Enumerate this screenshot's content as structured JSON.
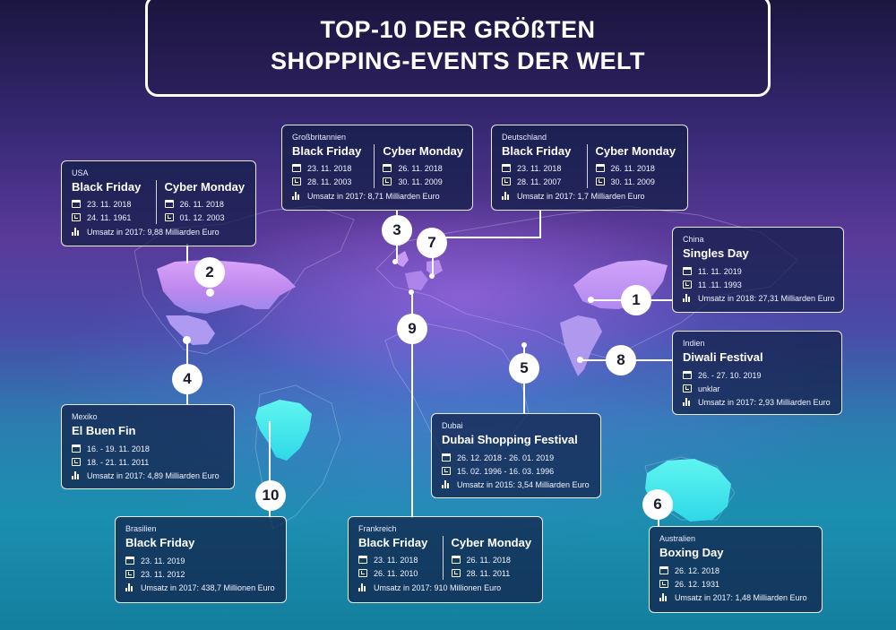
{
  "title": {
    "line1": "TOP-10 DER GRÖßTEN",
    "line2": "SHOPPING-EVENTS DER WELT"
  },
  "colors": {
    "card_bg": "#12204a",
    "badge": "#ffffff",
    "map_north": "#d8a8ff",
    "map_south": "#4ff0f0"
  },
  "icons": {
    "date": "calendar-icon",
    "founded": "clock-icon",
    "revenue": "bar-chart-icon"
  },
  "events": [
    {
      "rank": "1",
      "country": "China",
      "name": "Singles Day",
      "date": "11. 11. 2019",
      "since": "11 .11. 1993",
      "revenue": "Umsatz in 2018: 27,31 Milliarden Euro"
    },
    {
      "rank": "2",
      "country": "USA",
      "bf": {
        "name": "Black Friday",
        "date": "23. 11. 2018",
        "since": "24. 11. 1961"
      },
      "cm": {
        "name": "Cyber Monday",
        "date": "26. 11. 2018",
        "since": "01. 12. 2003"
      },
      "revenue": "Umsatz in 2017: 9,88 Milliarden Euro"
    },
    {
      "rank": "3",
      "country": "Großbritannien",
      "bf": {
        "name": "Black Friday",
        "date": "23. 11. 2018",
        "since": "28. 11. 2003"
      },
      "cm": {
        "name": "Cyber Monday",
        "date": "26. 11. 2018",
        "since": "30. 11. 2009"
      },
      "revenue": "Umsatz in 2017: 8,71 Milliarden Euro"
    },
    {
      "rank": "4",
      "country": "Mexiko",
      "name": "El Buen Fin",
      "date": "16. - 19. 11. 2018",
      "since": "18. - 21. 11. 2011",
      "revenue": "Umsatz in 2017: 4,89 Milliarden Euro"
    },
    {
      "rank": "5",
      "country": "Dubai",
      "name": "Dubai Shopping Festival",
      "date": "26. 12. 2018 - 26. 01. 2019",
      "since": "15. 02. 1996 - 16. 03. 1996",
      "revenue": "Umsatz in 2015: 3,54 Milliarden Euro"
    },
    {
      "rank": "6",
      "country": "Australien",
      "name": "Boxing Day",
      "date": "26. 12. 2018",
      "since": "26. 12. 1931",
      "revenue": "Umsatz in 2017: 1,48 Milliarden Euro"
    },
    {
      "rank": "7",
      "country": "Deutschland",
      "bf": {
        "name": "Black Friday",
        "date": "23. 11. 2018",
        "since": "28. 11. 2007"
      },
      "cm": {
        "name": "Cyber Monday",
        "date": "26. 11. 2018",
        "since": "30. 11. 2009"
      },
      "revenue": "Umsatz in 2017: 1,7 Milliarden Euro"
    },
    {
      "rank": "8",
      "country": "Indien",
      "name": "Diwali Festival",
      "date": "26. - 27. 10. 2019",
      "since": "unklar",
      "revenue": "Umsatz in 2017: 2,93 Milliarden Euro"
    },
    {
      "rank": "9",
      "country": "Frankreich",
      "bf": {
        "name": "Black Friday",
        "date": "23. 11. 2018",
        "since": "26. 11. 2010"
      },
      "cm": {
        "name": "Cyber Monday",
        "date": "26. 11. 2018",
        "since": "28. 11. 2011"
      },
      "revenue": "Umsatz in 2017: 910 Millionen Euro"
    },
    {
      "rank": "10",
      "country": "Brasilien",
      "name": "Black Friday",
      "date": "23. 11. 2019",
      "since": "23. 11. 2012",
      "revenue": "Umsatz in 2017: 438,7 Millionen Euro"
    }
  ]
}
